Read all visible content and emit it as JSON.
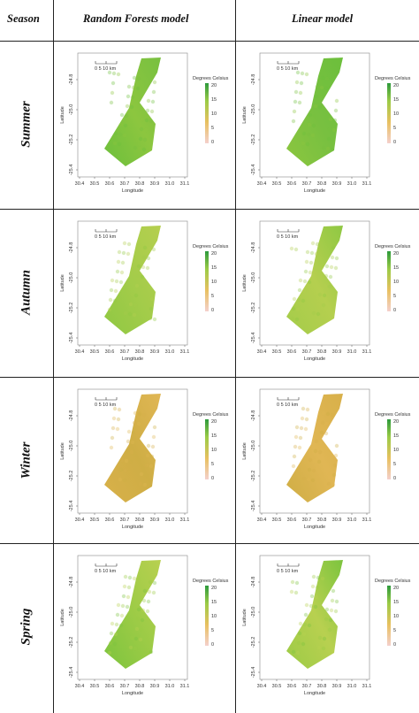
{
  "headers": {
    "season": "Season",
    "rf": "Random Forests model",
    "lin": "Linear model"
  },
  "seasons": [
    "Summer",
    "Autumn",
    "Winter",
    "Spring"
  ],
  "map": {
    "x_ticks": [
      "30.4",
      "30.5",
      "30.6",
      "30.7",
      "30.8",
      "30.9",
      "31.0",
      "31.1"
    ],
    "y_ticks": [
      "-24.8",
      "-25.0",
      "-25.2",
      "-25.4"
    ],
    "x_label": "Longitude",
    "y_label": "Latitude",
    "scalebar": "0   5  10 km",
    "legend_title": "Degrees Celsius",
    "legend_ticks": [
      "20",
      "15",
      "10",
      "5",
      "0"
    ]
  },
  "colors": {
    "Summer": [
      "#6cbf3c",
      "#8cc63f",
      "#78c040"
    ],
    "Autumn": [
      "#8fc843",
      "#a4cc4a",
      "#b5cf4f"
    ],
    "Winter": [
      "#d8b04a",
      "#cfae45",
      "#e0b654"
    ],
    "Spring": [
      "#7cc43e",
      "#9ccb46",
      "#b8d050"
    ]
  }
}
